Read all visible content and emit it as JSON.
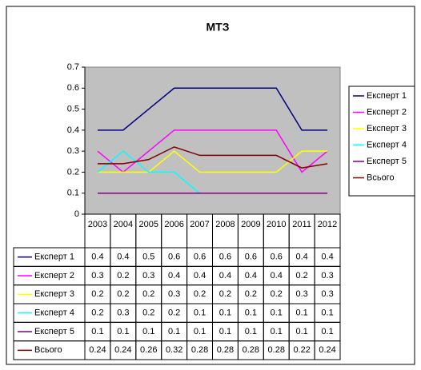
{
  "chart_data": {
    "type": "line",
    "title": "МТЗ",
    "categories": [
      "2003",
      "2004",
      "2005",
      "2006",
      "2007",
      "2008",
      "2009",
      "2010",
      "2011",
      "2012"
    ],
    "series": [
      {
        "name": "Експерт 1",
        "color": "#000080",
        "values": [
          0.4,
          0.4,
          0.5,
          0.6,
          0.6,
          0.6,
          0.6,
          0.6,
          0.4,
          0.4
        ]
      },
      {
        "name": "Експерт 2",
        "color": "#ff00ff",
        "values": [
          0.3,
          0.2,
          0.3,
          0.4,
          0.4,
          0.4,
          0.4,
          0.4,
          0.2,
          0.3
        ]
      },
      {
        "name": "Експерт 3",
        "color": "#ffff00",
        "values": [
          0.2,
          0.2,
          0.2,
          0.3,
          0.2,
          0.2,
          0.2,
          0.2,
          0.3,
          0.3
        ]
      },
      {
        "name": "Експерт 4",
        "color": "#00ffff",
        "values": [
          0.2,
          0.3,
          0.2,
          0.2,
          0.1,
          0.1,
          0.1,
          0.1,
          0.1,
          0.1
        ]
      },
      {
        "name": "Експерт 5",
        "color": "#800080",
        "values": [
          0.1,
          0.1,
          0.1,
          0.1,
          0.1,
          0.1,
          0.1,
          0.1,
          0.1,
          0.1
        ]
      },
      {
        "name": "Всього",
        "color": "#800000",
        "values": [
          0.24,
          0.24,
          0.26,
          0.32,
          0.28,
          0.28,
          0.28,
          0.28,
          0.22,
          0.24
        ]
      }
    ],
    "ylim": [
      0,
      0.7
    ],
    "yticks": [
      0,
      0.1,
      0.2,
      0.3,
      0.4,
      0.5,
      0.6,
      0.7
    ],
    "legend": "right",
    "plot_background": "#c0c0c0"
  }
}
